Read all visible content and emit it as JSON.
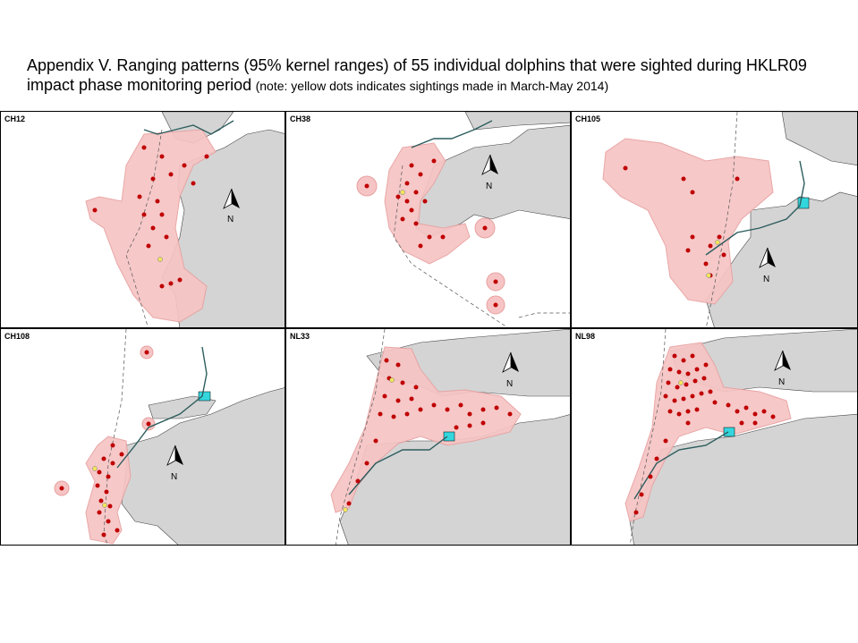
{
  "title": {
    "line1": "Appendix V.  Ranging patterns (95% kernel ranges) of 55 individual dolphins that were sighted during HKLR09",
    "line2": "impact phase monitoring period",
    "note": "(note: yellow dots indicates sightings made in March-May 2014)"
  },
  "colors": {
    "land": "#d4d4d4",
    "range": "#f6c4c4",
    "range_edge": "#e8a0a0",
    "sighting": "#c00000",
    "recent_sighting": "#f3e65a",
    "facility": "#33d6dd",
    "route": "#2e5d5e"
  },
  "north_label": "N",
  "panels": [
    {
      "id": "CH12"
    },
    {
      "id": "CH38"
    },
    {
      "id": "CH105"
    },
    {
      "id": "CH108"
    },
    {
      "id": "NL33"
    },
    {
      "id": "NL98"
    }
  ]
}
